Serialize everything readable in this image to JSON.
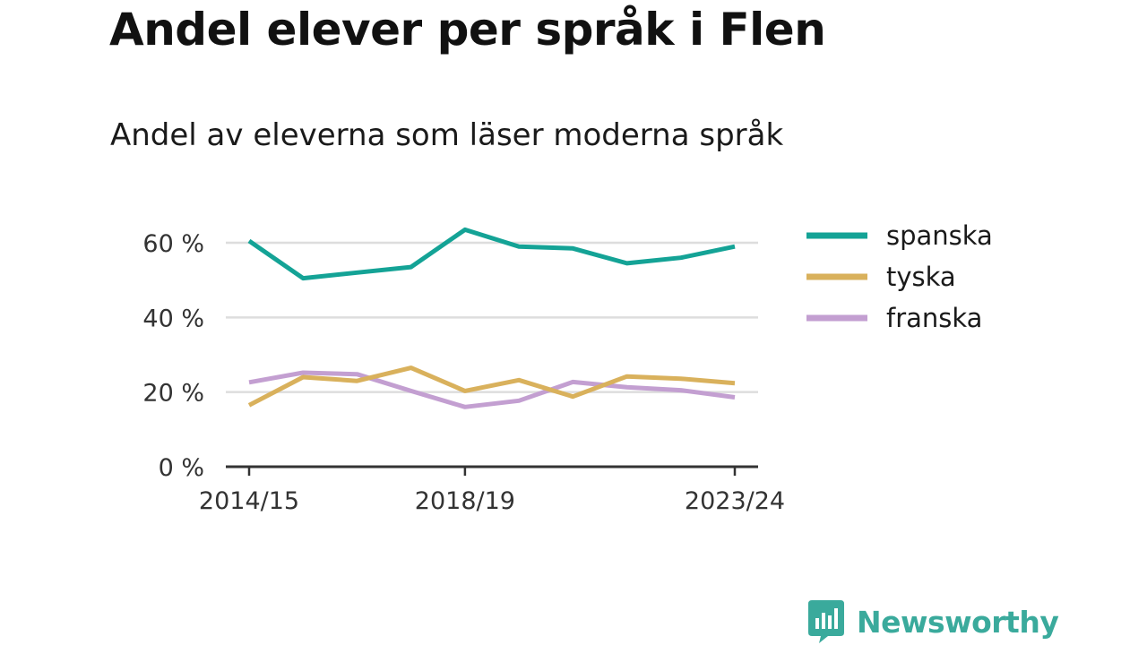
{
  "title": "Andel elever per språk i Flen",
  "subtitle": "Andel av eleverna som läser moderna språk",
  "brand": {
    "name": "Newsworthy",
    "color": "#3aaa9c"
  },
  "chart_data": {
    "type": "line",
    "x": [
      "2014/15",
      "2015/16",
      "2016/17",
      "2017/18",
      "2018/19",
      "2019/20",
      "2020/21",
      "2021/22",
      "2022/23",
      "2023/24"
    ],
    "x_tick_labels": [
      "2014/15",
      "2018/19",
      "2023/24"
    ],
    "x_tick_indices": [
      0,
      4,
      9
    ],
    "y_ticks": [
      0,
      20,
      40,
      60
    ],
    "y_tick_labels": [
      "0 %",
      "20 %",
      "40 %",
      "60 %"
    ],
    "ylim": [
      0,
      65
    ],
    "grid": true,
    "legend_position": "right",
    "series": [
      {
        "name": "spanska",
        "color": "#14a396",
        "values": [
          60.5,
          50.5,
          52,
          53.5,
          63.5,
          59,
          58.5,
          54.5,
          56,
          59
        ]
      },
      {
        "name": "tyska",
        "color": "#d9b15c",
        "values": [
          16.5,
          24,
          23,
          26.5,
          20.3,
          23.2,
          18.8,
          24.2,
          23.6,
          22.4
        ]
      },
      {
        "name": "franska",
        "color": "#c39fd1",
        "values": [
          22.6,
          25.2,
          24.8,
          20.3,
          16,
          17.7,
          22.7,
          21.3,
          20.5,
          18.6
        ]
      }
    ]
  }
}
